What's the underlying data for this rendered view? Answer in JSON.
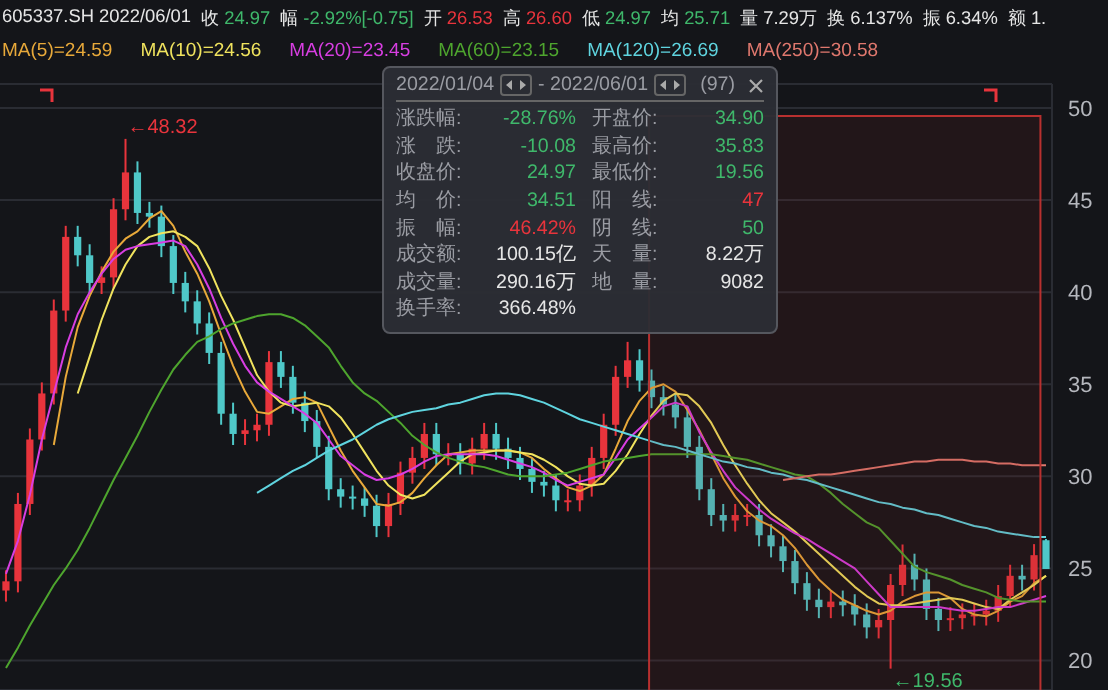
{
  "chart_data": {
    "type": "candlestick",
    "title": "605337.SH 2022/06/01",
    "categories": [
      null,
      null,
      null,
      null,
      null,
      null,
      null,
      null,
      null,
      null,
      null,
      null,
      null,
      null,
      null,
      null,
      null,
      null,
      null,
      null,
      null,
      null,
      null,
      null,
      null,
      null,
      null,
      null,
      null,
      null,
      null,
      null,
      null,
      null,
      null,
      null,
      null,
      null,
      null,
      null,
      null,
      null,
      null,
      null,
      null,
      null,
      null,
      null,
      null,
      null,
      null,
      null,
      null,
      null,
      null,
      null,
      null,
      null,
      null,
      null,
      null,
      null,
      null,
      null,
      null,
      null,
      null,
      null,
      null,
      null,
      null,
      null,
      null,
      null,
      null,
      null,
      null,
      null,
      null,
      null,
      null,
      null,
      null,
      null,
      null,
      null,
      null,
      null
    ],
    "ohlc": [
      [
        23.8,
        24.9,
        23.2,
        24.3
      ],
      [
        24.3,
        29.1,
        23.7,
        28.5
      ],
      [
        28.5,
        32.6,
        27.9,
        32
      ],
      [
        32,
        35.1,
        31.4,
        34.5
      ],
      [
        34.5,
        39.6,
        33.9,
        39
      ],
      [
        39,
        43.6,
        38.4,
        43
      ],
      [
        43,
        43.6,
        41.4,
        42
      ],
      [
        42,
        42.6,
        39.9,
        40.5
      ],
      [
        40.5,
        41.4,
        39.9,
        40.8
      ],
      [
        40.8,
        45.1,
        40.2,
        44.5
      ],
      [
        44.5,
        48.32,
        43.9,
        46.5
      ],
      [
        46.5,
        47.1,
        43.7,
        44.3
      ],
      [
        44.3,
        44.9,
        43.5,
        44.1
      ],
      [
        44.1,
        44.7,
        41.9,
        42.5
      ],
      [
        42.5,
        43.1,
        39.9,
        40.5
      ],
      [
        40.5,
        41.1,
        38.9,
        39.5
      ],
      [
        39.5,
        40.1,
        37.7,
        38.3
      ],
      [
        38.3,
        38.9,
        36.1,
        36.7
      ],
      [
        36.7,
        37.3,
        32.8,
        33.4
      ],
      [
        33.4,
        34,
        31.7,
        32.3
      ],
      [
        32.3,
        33.1,
        31.7,
        32.5
      ],
      [
        32.5,
        33.4,
        31.9,
        32.8
      ],
      [
        32.8,
        36.8,
        32.2,
        36.2
      ],
      [
        36.2,
        36.8,
        34.8,
        35.4
      ],
      [
        35.4,
        36,
        33.4,
        34
      ],
      [
        34,
        34.6,
        32.4,
        33
      ],
      [
        33,
        33.6,
        31,
        31.6
      ],
      [
        31.6,
        32.2,
        28.7,
        29.3
      ],
      [
        29.3,
        29.9,
        28.3,
        28.9
      ],
      [
        28.9,
        29.5,
        28.2,
        28.8
      ],
      [
        28.8,
        29.4,
        27.8,
        28.4
      ],
      [
        28.4,
        29,
        26.7,
        27.3
      ],
      [
        27.3,
        29.1,
        26.7,
        28.5
      ],
      [
        28.5,
        30.8,
        27.9,
        30.2
      ],
      [
        30.2,
        31.6,
        29.6,
        31
      ],
      [
        31,
        32.9,
        30.4,
        32.3
      ],
      [
        32.3,
        32.9,
        30.6,
        31.2
      ],
      [
        31.2,
        31.8,
        30.6,
        31.2
      ],
      [
        31.2,
        31.8,
        30.1,
        30.7
      ],
      [
        30.7,
        32.1,
        30.1,
        31.5
      ],
      [
        31.5,
        32.9,
        30.9,
        32.3
      ],
      [
        32.3,
        32.9,
        30.9,
        31.5
      ],
      [
        31.5,
        32.1,
        30.4,
        31
      ],
      [
        31,
        31.6,
        29.8,
        30.4
      ],
      [
        30.4,
        31,
        29.1,
        29.7
      ],
      [
        29.7,
        30.3,
        28.9,
        29.5
      ],
      [
        29.5,
        30.1,
        28.1,
        28.7
      ],
      [
        28.7,
        29.3,
        28.1,
        28.7
      ],
      [
        28.7,
        30.1,
        28.1,
        29.5
      ],
      [
        29.5,
        31.6,
        28.9,
        31
      ],
      [
        31,
        33.4,
        30.4,
        32.8
      ],
      [
        32.8,
        36,
        32.2,
        35.4
      ],
      [
        35.4,
        37.3,
        34.8,
        36.3
      ],
      [
        36.3,
        36.9,
        34.6,
        35.2
      ],
      [
        35.2,
        35.8,
        33.7,
        34.3
      ],
      [
        34.3,
        34.9,
        33.3,
        33.9
      ],
      [
        33.9,
        34.5,
        32.6,
        33.2
      ],
      [
        33.2,
        33.8,
        31,
        31.6
      ],
      [
        31.6,
        32.2,
        28.7,
        29.3
      ],
      [
        29.3,
        29.9,
        27.3,
        27.9
      ],
      [
        27.9,
        28.5,
        27,
        27.6
      ],
      [
        27.6,
        28.5,
        27,
        27.9
      ],
      [
        27.9,
        28.5,
        27.3,
        27.9
      ],
      [
        27.9,
        28.5,
        26.2,
        26.8
      ],
      [
        26.8,
        27.4,
        25.6,
        26.2
      ],
      [
        26.2,
        26.8,
        24.8,
        25.4
      ],
      [
        25.4,
        26,
        23.6,
        24.2
      ],
      [
        24.2,
        24.8,
        22.7,
        23.3
      ],
      [
        23.3,
        23.9,
        22.3,
        22.9
      ],
      [
        22.9,
        23.8,
        22.3,
        23.2
      ],
      [
        23.2,
        23.8,
        22.4,
        23
      ],
      [
        23,
        23.6,
        21.9,
        22.5
      ],
      [
        22.5,
        23.1,
        21.2,
        21.8
      ],
      [
        21.8,
        22.8,
        21.2,
        22.2
      ],
      [
        22.2,
        24.7,
        19.56,
        24.1
      ],
      [
        24.1,
        26.3,
        23.5,
        25.2
      ],
      [
        25.2,
        25.8,
        23.8,
        24.4
      ],
      [
        24.4,
        25,
        22.2,
        22.8
      ],
      [
        22.8,
        23.4,
        21.6,
        22.2
      ],
      [
        22.2,
        22.9,
        21.6,
        22.3
      ],
      [
        22.3,
        23.1,
        21.7,
        22.5
      ],
      [
        22.5,
        23.1,
        21.9,
        22.5
      ],
      [
        22.5,
        23.3,
        21.9,
        22.7
      ],
      [
        22.7,
        24.1,
        22.1,
        23.5
      ],
      [
        23.5,
        25.2,
        22.9,
        24.6
      ],
      [
        24.6,
        25.2,
        23.8,
        24.4
      ],
      [
        24.4,
        26.32,
        23.8,
        25.72
      ],
      [
        26.53,
        26.6,
        24.97,
        24.97
      ]
    ],
    "series": [
      {
        "name": "MA(5)=24.59",
        "type": "line",
        "color": "#e8a93a",
        "values": [
          null,
          null,
          null,
          null,
          31.7,
          35.4,
          38.1,
          39.8,
          41.1,
          42.2,
          42.9,
          43.3,
          44.0,
          44.4,
          43.6,
          42.2,
          41.0,
          39.5,
          37.7,
          36.0,
          34.6,
          33.5,
          33.4,
          33.8,
          34.2,
          34.3,
          34.0,
          32.7,
          31.4,
          30.3,
          29.4,
          28.5,
          28.4,
          28.6,
          29.1,
          29.9,
          30.6,
          31.2,
          31.3,
          31.4,
          31.4,
          31.4,
          31.4,
          31.3,
          31.0,
          30.4,
          29.9,
          29.4,
          29.2,
          29.5,
          30.1,
          31.5,
          33.0,
          34.1,
          34.8,
          35.0,
          34.6,
          33.6,
          32.5,
          31.2,
          29.9,
          28.9,
          28.1,
          27.6,
          27.3,
          26.8,
          26.1,
          25.2,
          24.4,
          23.8,
          23.3,
          23.0,
          22.7,
          22.5,
          22.7,
          23.2,
          23.5,
          23.7,
          23.7,
          23.4,
          22.8,
          22.5,
          22.4,
          22.7,
          23.2,
          23.5,
          24.2,
          24.6
        ]
      },
      {
        "name": "MA(10)=24.56",
        "type": "line",
        "color": "#f0e35e",
        "values": [
          null,
          null,
          null,
          null,
          null,
          null,
          34.5,
          36.5,
          38.5,
          40.2,
          41.5,
          42.5,
          43.0,
          43.2,
          43.3,
          43.0,
          42.5,
          41.3,
          39.8,
          38.5,
          37.0,
          35.5,
          34.6,
          34.0,
          33.8,
          33.9,
          34.0,
          33.8,
          33.2,
          32.3,
          31.3,
          30.3,
          29.5,
          29.0,
          28.8,
          29.0,
          29.6,
          30.2,
          30.8,
          31.2,
          31.3,
          31.4,
          31.4,
          31.3,
          31.2,
          30.9,
          30.5,
          30.0,
          29.6,
          29.5,
          29.6,
          30.3,
          31.2,
          32.3,
          33.3,
          34.1,
          34.5,
          34.4,
          33.8,
          32.9,
          31.7,
          30.6,
          29.6,
          28.7,
          28.0,
          27.5,
          27.0,
          26.4,
          25.8,
          25.2,
          24.6,
          24.0,
          23.5,
          23.1,
          23.0,
          23.0,
          23.1,
          23.2,
          23.3,
          23.4,
          23.3,
          23.1,
          22.9,
          22.8,
          23.3,
          23.7,
          24.1,
          24.6
        ]
      },
      {
        "name": "MA(20)=23.45",
        "type": "line",
        "color": "#d83ee2",
        "values": [
          24.7,
          26.5,
          29,
          32,
          34.5,
          37,
          38.8,
          40,
          41,
          41.8,
          42.3,
          42.5,
          42.6,
          42.7,
          42.8,
          42.5,
          41.5,
          40.2,
          38.6,
          37.2,
          36,
          35.1,
          34.6,
          34.2,
          33.8,
          33.4,
          32.9,
          32,
          31.1,
          30.6,
          30.1,
          29.8,
          29.9,
          30.1,
          30.4,
          30.8,
          31.1,
          31.2,
          31.2,
          31.2,
          31.2,
          31.1,
          30.9,
          30.7,
          30.5,
          30.2,
          29.8,
          29.5,
          29.7,
          29.9,
          30.1,
          31,
          32,
          32.6,
          33.2,
          33.8,
          34,
          33.8,
          32.4,
          31.3,
          30.3,
          29.4,
          28.8,
          28.2,
          27.7,
          27.3,
          26.9,
          26.6,
          26.2,
          25.8,
          25.4,
          25,
          24.3,
          23.6,
          22.9,
          22.9,
          22.9,
          22.9,
          22.9,
          22.8,
          22.7,
          22.7,
          22.8,
          22.9,
          22.9,
          23.1,
          23.3,
          23.5
        ]
      },
      {
        "name": "MA(60)=23.15",
        "type": "line",
        "color": "#4ea52e",
        "values": [
          19.6,
          20.7,
          21.9,
          23,
          24.1,
          25,
          26,
          27.2,
          28.5,
          29.8,
          31,
          32.2,
          33.5,
          34.7,
          35.8,
          36.6,
          37.3,
          37.6,
          38,
          38.3,
          38.5,
          38.7,
          38.8,
          38.8,
          38.6,
          38.2,
          37.6,
          37,
          36,
          35.1,
          34.5,
          34.1,
          33.5,
          32.9,
          32.2,
          31.7,
          31.3,
          31,
          30.8,
          30.6,
          30.5,
          30.3,
          30.1,
          30,
          30,
          30,
          30.1,
          30.2,
          30.4,
          30.6,
          30.8,
          30.9,
          31,
          31.1,
          31.2,
          31.2,
          31.2,
          31.2,
          31.2,
          31.2,
          31.1,
          31,
          30.9,
          30.7,
          30.5,
          30.3,
          30.1,
          30,
          29.6,
          29.1,
          28.5,
          28,
          27.5,
          27.2,
          26.5,
          25.8,
          25.1,
          24.8,
          24.6,
          24.4,
          24.1,
          23.9,
          23.7,
          23.4,
          23.3,
          23.2,
          23.2,
          23.2
        ]
      },
      {
        "name": "MA(120)=26.69",
        "type": "line",
        "color": "#5fd4df",
        "values": [
          null,
          null,
          null,
          null,
          null,
          null,
          null,
          null,
          null,
          null,
          null,
          null,
          null,
          null,
          null,
          null,
          null,
          null,
          null,
          null,
          null,
          29.1,
          29.5,
          29.9,
          30.3,
          30.6,
          31,
          31.4,
          31.7,
          32,
          32.4,
          32.8,
          33.1,
          33.3,
          33.5,
          33.6,
          33.7,
          33.9,
          34,
          34.2,
          34.4,
          34.5,
          34.5,
          34.4,
          34.2,
          34,
          33.7,
          33.4,
          33.1,
          32.9,
          32.7,
          32.5,
          32.3,
          32.1,
          31.9,
          31.7,
          31.6,
          31.4,
          31.2,
          31,
          30.8,
          30.7,
          30.5,
          30.4,
          30.2,
          30.1,
          29.9,
          29.8,
          29.6,
          29.4,
          29.2,
          29,
          28.8,
          28.6,
          28.5,
          28.3,
          28.2,
          28,
          27.9,
          27.7,
          27.5,
          27.3,
          27.2,
          27,
          26.9,
          26.8,
          26.7,
          26.7
        ]
      },
      {
        "name": "MA(250)=30.58",
        "type": "line",
        "color": "#e0786e",
        "values": [
          null,
          null,
          null,
          null,
          null,
          null,
          null,
          null,
          null,
          null,
          null,
          null,
          null,
          null,
          null,
          null,
          null,
          null,
          null,
          null,
          null,
          null,
          null,
          null,
          null,
          null,
          null,
          null,
          null,
          null,
          null,
          null,
          null,
          null,
          null,
          null,
          null,
          null,
          null,
          null,
          null,
          null,
          null,
          null,
          null,
          null,
          null,
          null,
          null,
          null,
          null,
          null,
          null,
          null,
          null,
          null,
          null,
          null,
          null,
          null,
          null,
          null,
          null,
          null,
          null,
          29.8,
          29.9,
          30,
          30.1,
          30.1,
          30.2,
          30.3,
          30.4,
          30.5,
          30.6,
          30.7,
          30.8,
          30.8,
          30.9,
          30.9,
          30.9,
          30.8,
          30.8,
          30.7,
          30.7,
          30.6,
          30.6,
          30.6
        ]
      }
    ],
    "ylim": [
      18.4,
      51.3
    ],
    "yticks": [
      20,
      25,
      30,
      35,
      40,
      45,
      50
    ],
    "grid": "y",
    "legend": "top left",
    "tick_labels": "y",
    "annotations": [
      "收",
      "24.97",
      "幅",
      "-2.92%[-0.75]",
      "开",
      "26.53",
      "高",
      "26.60",
      "低",
      "24.97",
      "均",
      "25.71",
      "量",
      "7.29万",
      "换",
      "6.137%",
      "振",
      "6.34%",
      "额",
      "1.",
      "2022/01/04",
      "- 2022/06/01",
      "(97)",
      "涨跌幅:",
      "-28.76%",
      "开盘价:",
      "34.90",
      "涨　跌:",
      "-10.08",
      "最高价:",
      "35.83",
      "收盘价:",
      "24.97",
      "最低价:",
      "19.56",
      "均　价:",
      "34.51",
      "阳　线:",
      "47",
      "振　幅:",
      "46.42%",
      "阴　线:",
      "50",
      "成交额:",
      "100.15亿",
      "天　量:",
      "8.22万",
      "成交量:",
      "290.16万",
      "地　量:",
      "9082",
      "换手率:",
      "366.48%",
      "←48.32",
      "←19.56"
    ]
  }
}
